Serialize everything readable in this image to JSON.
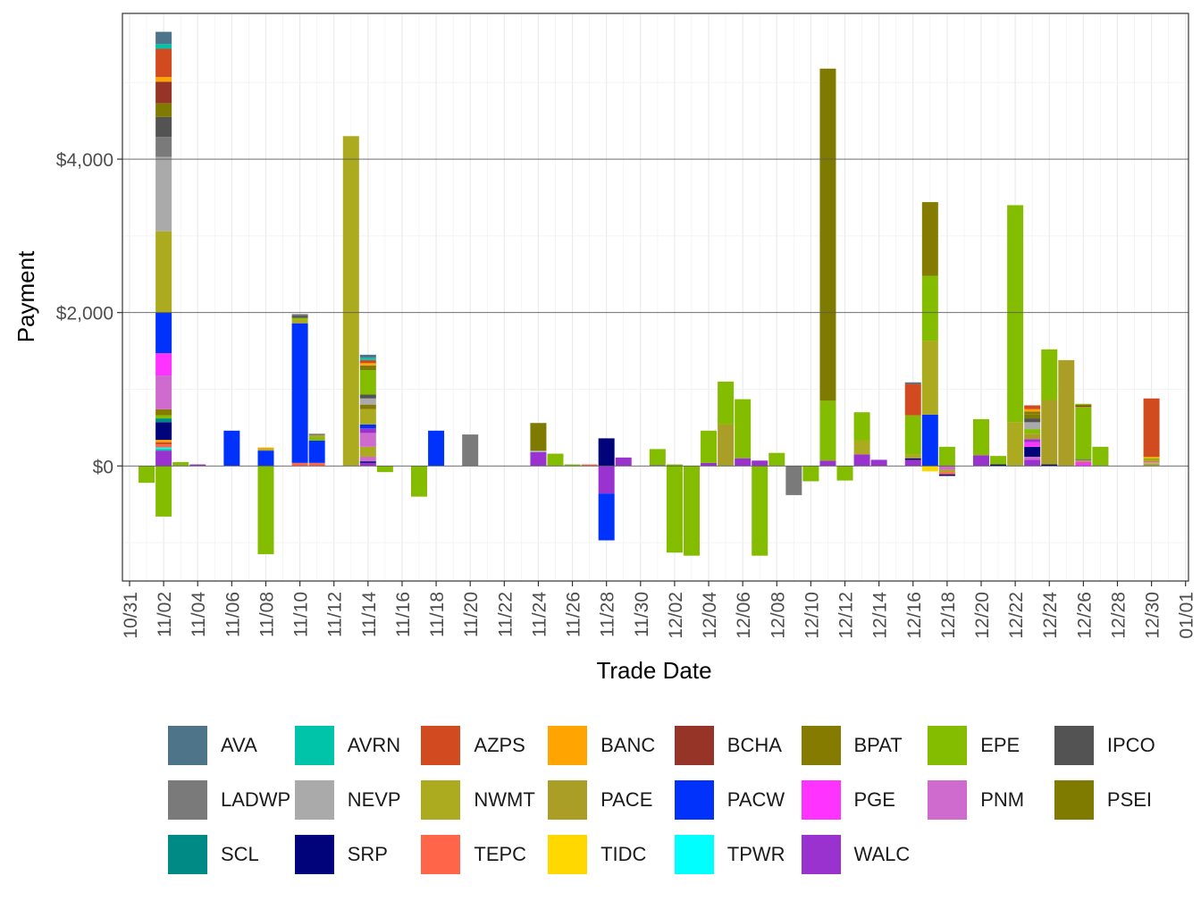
{
  "chart_data": {
    "type": "bar",
    "stacking": "stacked-diverging",
    "xlabel": "Trade Date",
    "ylabel": "Payment",
    "ylim": [
      -1500,
      5900
    ],
    "yticks": [
      0,
      2000,
      4000
    ],
    "ytick_labels": [
      "$0",
      "$2,000",
      "$4,000"
    ],
    "x_start": "10/31",
    "xticks": [
      "10/31",
      "11/02",
      "11/04",
      "11/06",
      "11/08",
      "11/10",
      "11/12",
      "11/14",
      "11/16",
      "11/18",
      "11/20",
      "11/22",
      "11/24",
      "11/26",
      "11/28",
      "11/30",
      "12/02",
      "12/04",
      "12/06",
      "12/08",
      "12/10",
      "12/12",
      "12/14",
      "12/16",
      "12/18",
      "12/20",
      "12/22",
      "12/24",
      "12/26",
      "12/28",
      "12/30",
      "01/01"
    ],
    "legend_order": [
      "AVA",
      "AVRN",
      "AZPS",
      "BANC",
      "BCHA",
      "BPAT",
      "EPE",
      "IPCO",
      "LADWP",
      "NEVP",
      "NWMT",
      "PACE",
      "PACW",
      "PGE",
      "PNM",
      "PSEI",
      "SCL",
      "SRP",
      "TEPC",
      "TIDC",
      "TPWR",
      "WALC"
    ],
    "colors": {
      "AVA": "#4e7489",
      "AVRN": "#00c4aa",
      "AZPS": "#d14a20",
      "BANC": "#ffa400",
      "BCHA": "#963527",
      "BPAT": "#857b00",
      "EPE": "#84bc00",
      "IPCO": "#535353",
      "LADWP": "#7a7a7a",
      "NEVP": "#aaaaaa",
      "NWMT": "#acaa1f",
      "PACE": "#ab9e27",
      "PACW": "#0032fc",
      "PGE": "#ff33ff",
      "PNM": "#cf6bcf",
      "PSEI": "#7f7a00",
      "SCL": "#008a86",
      "SRP": "#00037a",
      "TEPC": "#ff6549",
      "TIDC": "#ffd800",
      "TPWR": "#00ffff",
      "WALC": "#9932ce"
    },
    "bars": [
      {
        "date": "11/01",
        "segments": [
          [
            "EPE",
            -220
          ]
        ]
      },
      {
        "date": "11/02",
        "segments": [
          [
            "WALC",
            200
          ],
          [
            "AVRN",
            20
          ],
          [
            "TPWR",
            20
          ],
          [
            "TEPC",
            40
          ],
          [
            "AZPS",
            30
          ],
          [
            "BANC",
            30
          ],
          [
            "SRP",
            230
          ],
          [
            "SCL",
            50
          ],
          [
            "EPE",
            40
          ],
          [
            "BPAT",
            80
          ],
          [
            "PNM",
            440
          ],
          [
            "PGE",
            290
          ],
          [
            "PACW",
            530
          ],
          [
            "NWMT",
            1060
          ],
          [
            "NEVP",
            970
          ],
          [
            "LADWP",
            260
          ],
          [
            "IPCO",
            260
          ],
          [
            "PSEI",
            180
          ],
          [
            "BCHA",
            280
          ],
          [
            "BANC",
            60
          ],
          [
            "AZPS",
            370
          ],
          [
            "AVRN",
            60
          ],
          [
            "AVA",
            160
          ],
          [
            "EPE",
            -660
          ]
        ]
      },
      {
        "date": "11/03",
        "segments": [
          [
            "EPE",
            50
          ]
        ]
      },
      {
        "date": "11/04",
        "segments": [
          [
            "WALC",
            20
          ]
        ]
      },
      {
        "date": "11/06",
        "segments": [
          [
            "PACW",
            460
          ]
        ]
      },
      {
        "date": "11/08",
        "segments": [
          [
            "PACW",
            200
          ],
          [
            "NWMT",
            20
          ],
          [
            "BANC",
            20
          ],
          [
            "EPE",
            -1150
          ]
        ]
      },
      {
        "date": "11/10",
        "segments": [
          [
            "TEPC",
            40
          ],
          [
            "PACW",
            1820
          ],
          [
            "NWMT",
            50
          ],
          [
            "EPE",
            20
          ],
          [
            "IPCO",
            30
          ],
          [
            "LADWP",
            20
          ]
        ]
      },
      {
        "date": "11/11",
        "segments": [
          [
            "TEPC",
            40
          ],
          [
            "PACW",
            290
          ],
          [
            "EPE",
            40
          ],
          [
            "NWMT",
            30
          ],
          [
            "LADWP",
            20
          ]
        ]
      },
      {
        "date": "11/13",
        "segments": [
          [
            "NWMT",
            4300
          ]
        ]
      },
      {
        "date": "11/14",
        "segments": [
          [
            "WALC",
            40
          ],
          [
            "SRP",
            20
          ],
          [
            "PNM",
            60
          ],
          [
            "NWMT",
            130
          ],
          [
            "PNM",
            180
          ],
          [
            "WALC",
            60
          ],
          [
            "PACW",
            50
          ],
          [
            "NWMT",
            200
          ],
          [
            "BPAT",
            60
          ],
          [
            "NEVP",
            80
          ],
          [
            "IPCO",
            50
          ],
          [
            "EPE",
            320
          ],
          [
            "PSEI",
            60
          ],
          [
            "BANC",
            30
          ],
          [
            "AZPS",
            40
          ],
          [
            "AVRN",
            30
          ],
          [
            "AVA",
            40
          ]
        ]
      },
      {
        "date": "11/15",
        "segments": [
          [
            "EPE",
            -80
          ]
        ]
      },
      {
        "date": "11/17",
        "segments": [
          [
            "EPE",
            -400
          ]
        ]
      },
      {
        "date": "11/18",
        "segments": [
          [
            "PACW",
            460
          ]
        ]
      },
      {
        "date": "11/20",
        "segments": [
          [
            "LADWP",
            410
          ]
        ]
      },
      {
        "date": "11/24",
        "segments": [
          [
            "WALC",
            180
          ],
          [
            "NEVP",
            20
          ],
          [
            "PSEI",
            360
          ]
        ]
      },
      {
        "date": "11/25",
        "segments": [
          [
            "EPE",
            160
          ]
        ]
      },
      {
        "date": "11/26",
        "segments": [
          [
            "EPE",
            20
          ]
        ]
      },
      {
        "date": "11/27",
        "segments": [
          [
            "TEPC",
            20
          ]
        ]
      },
      {
        "date": "11/28",
        "segments": [
          [
            "SRP",
            360
          ],
          [
            "WALC",
            -360
          ],
          [
            "PACW",
            -610
          ]
        ]
      },
      {
        "date": "11/29",
        "segments": [
          [
            "WALC",
            110
          ]
        ]
      },
      {
        "date": "12/01",
        "segments": [
          [
            "IPCO",
            10
          ],
          [
            "EPE",
            210
          ]
        ]
      },
      {
        "date": "12/02",
        "segments": [
          [
            "EPE",
            20
          ],
          [
            "EPE",
            -1130
          ]
        ]
      },
      {
        "date": "12/03",
        "segments": [
          [
            "EPE",
            -1170
          ]
        ]
      },
      {
        "date": "12/04",
        "segments": [
          [
            "WALC",
            40
          ],
          [
            "EPE",
            420
          ]
        ]
      },
      {
        "date": "12/05",
        "segments": [
          [
            "PACE",
            540
          ],
          [
            "EPE",
            560
          ]
        ]
      },
      {
        "date": "12/06",
        "segments": [
          [
            "WALC",
            100
          ],
          [
            "EPE",
            770
          ]
        ]
      },
      {
        "date": "12/07",
        "segments": [
          [
            "WALC",
            70
          ],
          [
            "EPE",
            -1170
          ]
        ]
      },
      {
        "date": "12/08",
        "segments": [
          [
            "EPE",
            170
          ]
        ]
      },
      {
        "date": "12/09",
        "segments": [
          [
            "LADWP",
            -380
          ]
        ]
      },
      {
        "date": "12/10",
        "segments": [
          [
            "EPE",
            -200
          ]
        ]
      },
      {
        "date": "12/11",
        "segments": [
          [
            "WALC",
            70
          ],
          [
            "EPE",
            780
          ],
          [
            "PSEI",
            4330
          ]
        ]
      },
      {
        "date": "12/12",
        "segments": [
          [
            "EPE",
            -190
          ]
        ]
      },
      {
        "date": "12/13",
        "segments": [
          [
            "WALC",
            150
          ],
          [
            "NWMT",
            180
          ],
          [
            "EPE",
            370
          ]
        ]
      },
      {
        "date": "12/14",
        "segments": [
          [
            "WALC",
            80
          ]
        ]
      },
      {
        "date": "12/16",
        "segments": [
          [
            "WALC",
            80
          ],
          [
            "SRP",
            20
          ],
          [
            "NWMT",
            50
          ],
          [
            "EPE",
            510
          ],
          [
            "AZPS",
            410
          ],
          [
            "AVA",
            20
          ]
        ]
      },
      {
        "date": "12/17",
        "segments": [
          [
            "PACW",
            670
          ],
          [
            "NWMT",
            960
          ],
          [
            "EPE",
            850
          ],
          [
            "BPAT",
            960
          ],
          [
            "TIDC",
            -70
          ]
        ]
      },
      {
        "date": "12/18",
        "segments": [
          [
            "EPE",
            250
          ],
          [
            "PNM",
            -50
          ],
          [
            "NWMT",
            -30
          ],
          [
            "TEPC",
            -30
          ],
          [
            "SRP",
            -20
          ]
        ]
      },
      {
        "date": "12/20",
        "segments": [
          [
            "WALC",
            140
          ],
          [
            "EPE",
            470
          ]
        ]
      },
      {
        "date": "12/21",
        "segments": [
          [
            "SRP",
            20
          ],
          [
            "EPE",
            110
          ]
        ]
      },
      {
        "date": "12/22",
        "segments": [
          [
            "NWMT",
            570
          ],
          [
            "EPE",
            2830
          ]
        ]
      },
      {
        "date": "12/23",
        "segments": [
          [
            "WALC",
            80
          ],
          [
            "PNM",
            40
          ],
          [
            "SRP",
            130
          ],
          [
            "PGE",
            60
          ],
          [
            "WALC",
            40
          ],
          [
            "PACE",
            70
          ],
          [
            "EPE",
            60
          ],
          [
            "NEVP",
            90
          ],
          [
            "IPCO",
            50
          ],
          [
            "PSEI",
            50
          ],
          [
            "BPAT",
            40
          ],
          [
            "BANC",
            30
          ],
          [
            "AZPS",
            50
          ]
        ]
      },
      {
        "date": "12/24",
        "segments": [
          [
            "SRP",
            20
          ],
          [
            "PACE",
            840
          ],
          [
            "EPE",
            660
          ]
        ]
      },
      {
        "date": "12/25",
        "segments": [
          [
            "PACE",
            1380
          ]
        ]
      },
      {
        "date": "12/26",
        "segments": [
          [
            "PGE",
            50
          ],
          [
            "NWMT",
            20
          ],
          [
            "LADWP",
            20
          ],
          [
            "EPE",
            680
          ],
          [
            "BCHA",
            20
          ],
          [
            "EPE",
            20
          ]
        ]
      },
      {
        "date": "12/27",
        "segments": [
          [
            "EPE",
            250
          ]
        ]
      },
      {
        "date": "12/30",
        "segments": [
          [
            "NWMT",
            30
          ],
          [
            "NEVP",
            20
          ],
          [
            "TEPC",
            20
          ],
          [
            "EPE",
            30
          ],
          [
            "BANC",
            20
          ],
          [
            "AZPS",
            760
          ]
        ]
      }
    ]
  }
}
